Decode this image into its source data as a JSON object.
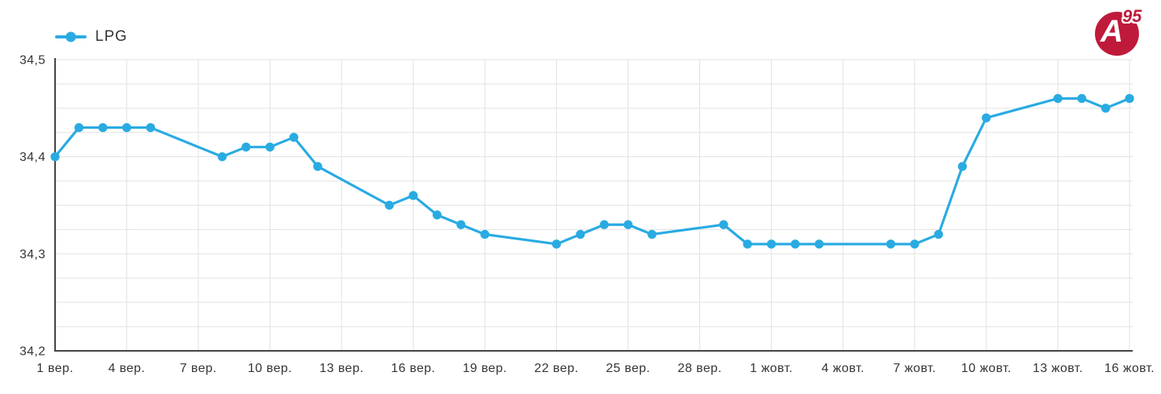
{
  "legend": {
    "label": "LPG"
  },
  "logo": {
    "letter": "A",
    "number": "95"
  },
  "colors": {
    "line": "#29abe2",
    "grid": "#e2e2e2",
    "axis": "#424242",
    "label": "#333333",
    "logo_red": "#c01a3b"
  },
  "chart_data": {
    "type": "line",
    "title": "",
    "xlabel": "",
    "ylabel": "",
    "legend_position": "top-left",
    "grid": true,
    "ylim": [
      34.2,
      34.5
    ],
    "y_minor_step": 0.025,
    "y_ticks": [
      {
        "value": 34.2,
        "label": "34,2"
      },
      {
        "value": 34.3,
        "label": "34,3"
      },
      {
        "value": 34.4,
        "label": "34,4"
      },
      {
        "value": 34.5,
        "label": "34,5"
      }
    ],
    "x_axis_days_span": 45,
    "x_ticks": [
      {
        "day": 0,
        "label": "1 вер."
      },
      {
        "day": 3,
        "label": "4 вер."
      },
      {
        "day": 6,
        "label": "7 вер."
      },
      {
        "day": 9,
        "label": "10 вер."
      },
      {
        "day": 12,
        "label": "13 вер."
      },
      {
        "day": 15,
        "label": "16 вер."
      },
      {
        "day": 18,
        "label": "19 вер."
      },
      {
        "day": 21,
        "label": "22 вер."
      },
      {
        "day": 24,
        "label": "25 вер."
      },
      {
        "day": 27,
        "label": "28 вер."
      },
      {
        "day": 30,
        "label": "1 жовт."
      },
      {
        "day": 33,
        "label": "4 жовт."
      },
      {
        "day": 36,
        "label": "7 жовт."
      },
      {
        "day": 39,
        "label": "10 жовт."
      },
      {
        "day": 42,
        "label": "13 жовт."
      },
      {
        "day": 45,
        "label": "16 жовт."
      }
    ],
    "series": [
      {
        "name": "LPG",
        "x_days": [
          0,
          1,
          2,
          3,
          4,
          7,
          8,
          9,
          10,
          11,
          14,
          15,
          16,
          17,
          18,
          21,
          22,
          23,
          24,
          25,
          28,
          29,
          30,
          31,
          32,
          35,
          36,
          37,
          38,
          39,
          42,
          43,
          44,
          45
        ],
        "values": [
          34.4,
          34.43,
          34.43,
          34.43,
          34.43,
          34.4,
          34.41,
          34.41,
          34.42,
          34.39,
          34.35,
          34.36,
          34.34,
          34.33,
          34.32,
          34.31,
          34.32,
          34.33,
          34.33,
          34.32,
          34.33,
          34.31,
          34.31,
          34.31,
          34.31,
          34.31,
          34.31,
          34.32,
          34.39,
          34.44,
          34.46,
          34.46,
          34.45,
          34.46
        ]
      }
    ]
  }
}
